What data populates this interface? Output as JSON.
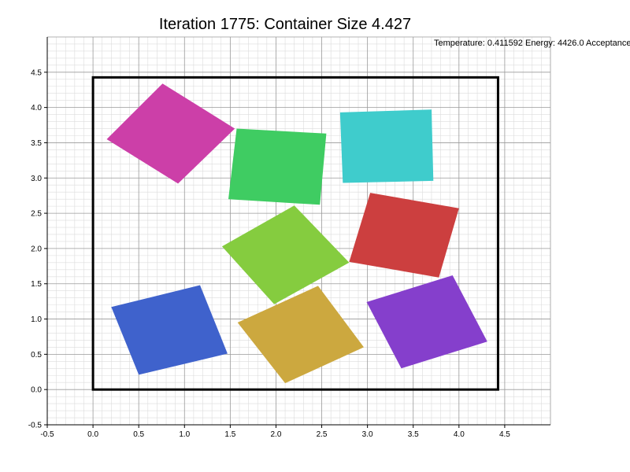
{
  "title": "Iteration 1775: Container Size 4.427",
  "status_text": "Temperature: 0.411592 Energy: 4426.0 Acceptance",
  "chart_data": {
    "type": "scatter",
    "title": "Iteration 1775: Container Size 4.427",
    "xlim": [
      -0.5,
      5.0
    ],
    "ylim": [
      -0.5,
      5.0
    ],
    "x_ticks": [
      "-0.5",
      "0.0",
      "0.5",
      "1.0",
      "1.5",
      "2.0",
      "2.5",
      "3.0",
      "3.5",
      "4.0",
      "4.5"
    ],
    "y_ticks": [
      "-0.5",
      "0.0",
      "0.5",
      "1.0",
      "1.5",
      "2.0",
      "2.5",
      "3.0",
      "3.5",
      "4.0",
      "4.5"
    ],
    "grid": true,
    "container": {
      "x": 0,
      "y": 0,
      "size": 4.427,
      "color": "#000000"
    },
    "squares": [
      {
        "color": "#cc3fa8",
        "points": [
          [
            0.15,
            3.55
          ],
          [
            0.76,
            4.34
          ],
          [
            1.55,
            3.7
          ],
          [
            0.93,
            2.92
          ]
        ]
      },
      {
        "color": "#3fcc62",
        "points": [
          [
            1.57,
            3.7
          ],
          [
            2.55,
            3.63
          ],
          [
            2.48,
            2.62
          ],
          [
            1.48,
            2.7
          ]
        ]
      },
      {
        "color": "#3fcccc",
        "points": [
          [
            2.7,
            3.93
          ],
          [
            3.7,
            3.97
          ],
          [
            3.72,
            2.96
          ],
          [
            2.73,
            2.93
          ]
        ]
      },
      {
        "color": "#85cc3f",
        "points": [
          [
            1.41,
            2.03
          ],
          [
            2.2,
            2.61
          ],
          [
            2.8,
            1.8
          ],
          [
            1.98,
            1.21
          ]
        ]
      },
      {
        "color": "#cc3f3f",
        "points": [
          [
            3.03,
            2.79
          ],
          [
            4.0,
            2.57
          ],
          [
            3.78,
            1.59
          ],
          [
            2.8,
            1.81
          ]
        ]
      },
      {
        "color": "#3f62cc",
        "points": [
          [
            0.2,
            1.17
          ],
          [
            1.17,
            1.48
          ],
          [
            1.47,
            0.51
          ],
          [
            0.5,
            0.21
          ]
        ]
      },
      {
        "color": "#cca83f",
        "points": [
          [
            1.58,
            0.95
          ],
          [
            2.46,
            1.47
          ],
          [
            2.96,
            0.6
          ],
          [
            2.1,
            0.09
          ]
        ]
      },
      {
        "color": "#853fcc",
        "points": [
          [
            2.99,
            1.24
          ],
          [
            3.93,
            1.62
          ],
          [
            4.31,
            0.68
          ],
          [
            3.37,
            0.3
          ]
        ]
      }
    ]
  }
}
